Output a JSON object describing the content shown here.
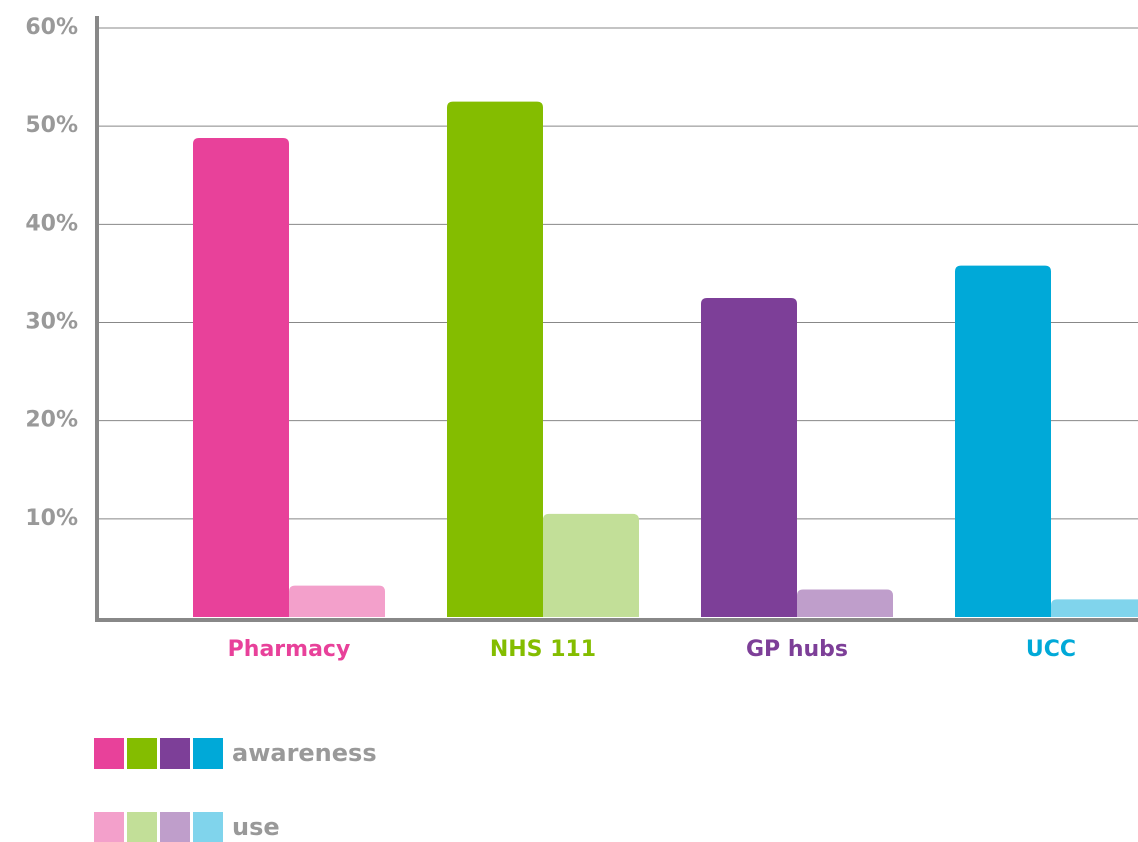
{
  "chart_data": {
    "type": "bar",
    "categories": [
      "Pharmacy",
      "NHS 111",
      "GP hubs",
      "UCC"
    ],
    "series": [
      {
        "name": "awareness",
        "colors": [
          "#e8419a",
          "#84bd00",
          "#7d3f98",
          "#00a9d8"
        ],
        "values": [
          48.8,
          52.5,
          32.5,
          35.8
        ]
      },
      {
        "name": "use",
        "colors": [
          "#f3a0cb",
          "#c2df98",
          "#bf9ecb",
          "#80d4ec"
        ],
        "values": [
          3.2,
          10.5,
          2.8,
          1.8
        ]
      }
    ],
    "ylim": [
      0,
      60
    ],
    "yticks": [
      {
        "value": 10,
        "label": "10%"
      },
      {
        "value": 20,
        "label": "20%"
      },
      {
        "value": 30,
        "label": "30%"
      },
      {
        "value": 40,
        "label": "40%"
      },
      {
        "value": 50,
        "label": "50%"
      },
      {
        "value": 60,
        "label": "60%"
      }
    ],
    "grid": true
  }
}
